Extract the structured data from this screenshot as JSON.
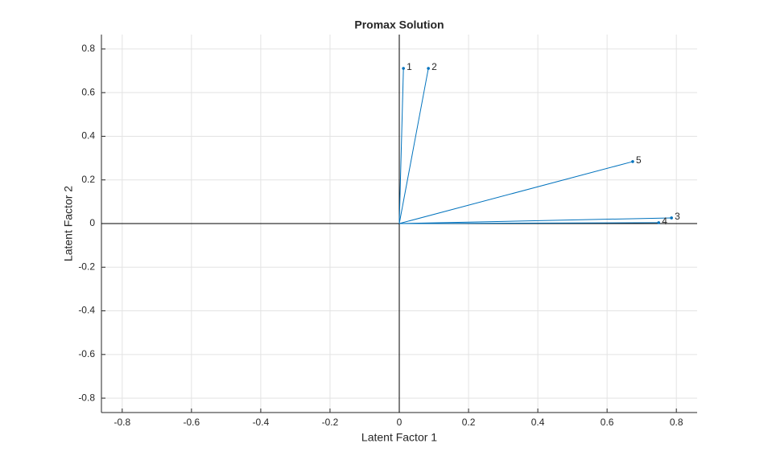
{
  "chart_data": {
    "type": "biplot",
    "title": "Promax Solution",
    "x_label": "Latent Factor 1",
    "y_label": "Latent Factor 2",
    "series": [
      {
        "color": "#0072bd",
        "x": [
          0.012,
          0.084,
          0.786,
          0.749,
          0.674
        ],
        "y": [
          0.711,
          0.711,
          0.026,
          0.004,
          0.284
        ],
        "labels": [
          "1",
          "2",
          "3",
          "4",
          "5"
        ]
      }
    ],
    "xlim": [
      -0.86,
      0.86
    ],
    "ylim": [
      -0.866,
      0.866
    ],
    "xticks": [
      -0.8,
      -0.6,
      -0.4,
      -0.2,
      0,
      0.2,
      0.4,
      0.6,
      0.8
    ],
    "yticks": [
      -0.8,
      -0.6,
      -0.4,
      -0.2,
      0,
      0.2,
      0.4,
      0.6,
      0.8
    ],
    "grid": true
  }
}
